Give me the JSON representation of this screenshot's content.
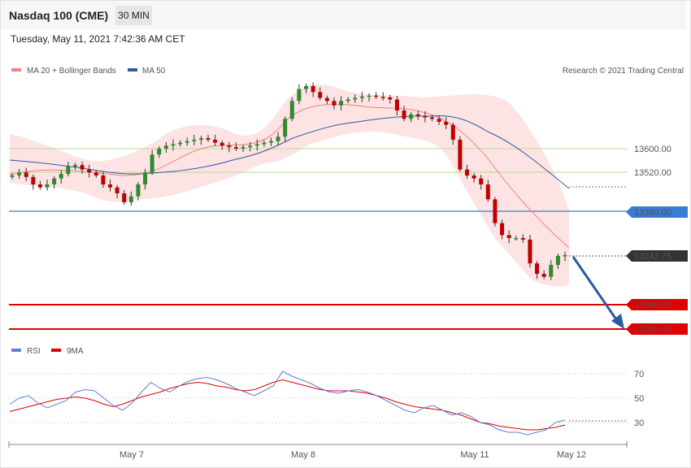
{
  "header": {
    "title": "Nasdaq 100 (CME)",
    "timeframe": "30 MIN"
  },
  "timestamp": "Tuesday, May 11, 2021 7:42:36 AM CET",
  "legend_main": [
    {
      "label": "MA 20 + Bollinger Bands",
      "color": "#f08080"
    },
    {
      "label": "MA 50",
      "color": "#2d5a9e"
    }
  ],
  "legend_rsi": [
    {
      "label": "RSI",
      "color": "#5b7fd6"
    },
    {
      "label": "9MA",
      "color": "#e00000"
    }
  ],
  "copyright": "Research © 2021 Trading Central",
  "colors": {
    "resistance": "#8cc63f",
    "pivot": "#3a7bd5",
    "support": "#e00000",
    "last": "#333333",
    "arrow": "#2d5a9e"
  },
  "chart_data": [
    {
      "type": "candlestick",
      "x_ticks": [
        "May 7",
        "May 8",
        "May 11",
        "May 12"
      ],
      "last_price": 13242.75,
      "levels": [
        {
          "value": 13600.0,
          "label": "13600.00",
          "kind": "resistance"
        },
        {
          "value": 13520.0,
          "label": "13520.00",
          "kind": "resistance"
        },
        {
          "value": 13390.0,
          "label": "13390.00",
          "kind": "pivot"
        },
        {
          "value": 13242.75,
          "label": "13242.75",
          "kind": "last"
        },
        {
          "value": 13080.0,
          "label": "13080.00",
          "kind": "support"
        },
        {
          "value": 13000.0,
          "label": "13000.00",
          "kind": "support"
        }
      ],
      "close_path": [
        13510,
        13520,
        13505,
        13480,
        13470,
        13480,
        13500,
        13515,
        13540,
        13545,
        13530,
        13520,
        13510,
        13480,
        13470,
        13450,
        13420,
        13440,
        13480,
        13520,
        13580,
        13600,
        13610,
        13615,
        13620,
        13625,
        13630,
        13635,
        13630,
        13620,
        13610,
        13605,
        13600,
        13605,
        13610,
        13615,
        13620,
        13625,
        13640,
        13700,
        13760,
        13800,
        13810,
        13790,
        13770,
        13760,
        13745,
        13760,
        13765,
        13770,
        13775,
        13778,
        13774,
        13772,
        13765,
        13728,
        13700,
        13715,
        13710,
        13705,
        13700,
        13690,
        13680,
        13630,
        13530,
        13510,
        13500,
        13480,
        13430,
        13350,
        13310,
        13300,
        13300,
        13295,
        13215,
        13180,
        13170,
        13210,
        13240,
        13242.75
      ],
      "price_path_spacing": "30-minute bars",
      "ma20_path": [
        13480,
        13485,
        13490,
        13490,
        13495,
        13498,
        13500,
        13505,
        13510,
        13515,
        13515,
        13510,
        13505,
        13500,
        13500,
        13505,
        13515,
        13530,
        13550,
        13570,
        13590,
        13605,
        13615,
        13620,
        13625,
        13625,
        13625,
        13625,
        13625,
        13625,
        13630,
        13640,
        13660,
        13690,
        13720,
        13745,
        13760,
        13768,
        13772,
        13772,
        13768,
        13760,
        13745,
        13725,
        13700,
        13680,
        13650,
        13610,
        13570,
        13520,
        13470,
        13420,
        13370,
        13320,
        13270
      ],
      "ma50_path": [
        13545,
        13535,
        13525,
        13515,
        13505,
        13495,
        13490,
        13490,
        13495,
        13505,
        13520,
        13535,
        13550,
        13560,
        13570,
        13578,
        13585,
        13590,
        13600,
        13615,
        13640,
        13665,
        13690,
        13705,
        13712,
        13715,
        13715,
        13718,
        13720,
        13724,
        13728,
        13732,
        13730,
        13725,
        13715,
        13695,
        13665,
        13630,
        13590,
        13550,
        13510
      ],
      "bollinger_note": "upper/lower bands around MA20"
    },
    {
      "type": "line",
      "name": "RSI",
      "y_ticks": [
        70,
        50,
        30
      ],
      "ylim": [
        20,
        80
      ],
      "series": [
        {
          "name": "RSI",
          "values": [
            45,
            50,
            52,
            46,
            42,
            45,
            48,
            55,
            57,
            56,
            50,
            44,
            40,
            46,
            55,
            63,
            58,
            55,
            60,
            64,
            66,
            67,
            65,
            62,
            58,
            55,
            52,
            56,
            60,
            72,
            68,
            65,
            62,
            58,
            55,
            54,
            56,
            57,
            55,
            52,
            48,
            44,
            40,
            38,
            42,
            44,
            40,
            36,
            38,
            35,
            30,
            28,
            24,
            22,
            22,
            20,
            22,
            24,
            30,
            32
          ]
        },
        {
          "name": "9MA",
          "values": [
            39,
            41,
            43,
            45,
            47,
            49,
            50,
            51,
            50,
            48,
            45,
            43,
            45,
            48,
            51,
            53,
            55,
            58,
            60,
            62,
            63,
            62,
            60,
            59,
            57,
            56,
            57,
            60,
            63,
            65,
            63,
            61,
            59,
            57,
            56,
            56,
            56,
            55,
            54,
            52,
            50,
            47,
            45,
            43,
            42,
            41,
            40,
            38,
            36,
            33,
            30,
            29,
            27,
            26,
            25,
            24,
            24,
            25,
            26,
            28
          ]
        }
      ]
    }
  ]
}
